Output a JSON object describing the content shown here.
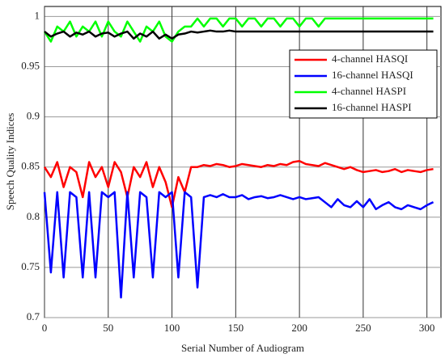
{
  "chart_data": {
    "type": "line",
    "xlabel": "Serial Number of Audiogram",
    "ylabel": "Speech Quality Indices",
    "x": [
      0,
      5,
      10,
      15,
      20,
      25,
      30,
      35,
      40,
      45,
      50,
      55,
      60,
      65,
      70,
      75,
      80,
      85,
      90,
      95,
      100,
      105,
      110,
      115,
      120,
      125,
      130,
      135,
      140,
      145,
      150,
      155,
      160,
      165,
      170,
      175,
      180,
      185,
      190,
      195,
      200,
      205,
      210,
      215,
      220,
      225,
      230,
      235,
      240,
      245,
      250,
      255,
      260,
      265,
      270,
      275,
      280,
      285,
      290,
      295,
      300,
      305
    ],
    "series": [
      {
        "name": "4-channel HASQI",
        "color": "#ff0000",
        "values": [
          0.85,
          0.84,
          0.855,
          0.83,
          0.85,
          0.845,
          0.82,
          0.855,
          0.84,
          0.85,
          0.83,
          0.855,
          0.845,
          0.82,
          0.85,
          0.84,
          0.855,
          0.83,
          0.85,
          0.835,
          0.81,
          0.84,
          0.825,
          0.85,
          0.85,
          0.852,
          0.851,
          0.853,
          0.852,
          0.85,
          0.851,
          0.853,
          0.852,
          0.851,
          0.85,
          0.852,
          0.851,
          0.853,
          0.852,
          0.855,
          0.856,
          0.853,
          0.852,
          0.851,
          0.854,
          0.852,
          0.85,
          0.848,
          0.85,
          0.847,
          0.845,
          0.846,
          0.847,
          0.845,
          0.846,
          0.848,
          0.845,
          0.847,
          0.846,
          0.845,
          0.847,
          0.848
        ]
      },
      {
        "name": "16-channel HASQI",
        "color": "#0000ff",
        "values": [
          0.825,
          0.745,
          0.825,
          0.74,
          0.825,
          0.82,
          0.74,
          0.825,
          0.74,
          0.825,
          0.82,
          0.825,
          0.72,
          0.825,
          0.74,
          0.825,
          0.82,
          0.74,
          0.825,
          0.82,
          0.825,
          0.74,
          0.825,
          0.82,
          0.73,
          0.82,
          0.822,
          0.82,
          0.823,
          0.82,
          0.82,
          0.822,
          0.818,
          0.82,
          0.821,
          0.819,
          0.82,
          0.822,
          0.82,
          0.818,
          0.82,
          0.818,
          0.819,
          0.82,
          0.815,
          0.81,
          0.818,
          0.812,
          0.81,
          0.816,
          0.81,
          0.818,
          0.808,
          0.812,
          0.815,
          0.81,
          0.808,
          0.812,
          0.81,
          0.808,
          0.812,
          0.815
        ]
      },
      {
        "name": "4-channel HASPI",
        "color": "#00ff00",
        "values": [
          0.985,
          0.975,
          0.99,
          0.985,
          0.995,
          0.98,
          0.99,
          0.985,
          0.995,
          0.98,
          0.995,
          0.985,
          0.98,
          0.995,
          0.985,
          0.975,
          0.99,
          0.985,
          0.995,
          0.98,
          0.975,
          0.985,
          0.99,
          0.99,
          0.998,
          0.99,
          0.998,
          0.998,
          0.99,
          0.998,
          0.998,
          0.99,
          0.998,
          0.998,
          0.99,
          0.998,
          0.998,
          0.99,
          0.998,
          0.998,
          0.99,
          0.998,
          0.998,
          0.99,
          0.998,
          0.998,
          0.998,
          0.998,
          0.998,
          0.998,
          0.998,
          0.998,
          0.998,
          0.998,
          0.998,
          0.998,
          0.998,
          0.998,
          0.998,
          0.998,
          0.998,
          0.998
        ]
      },
      {
        "name": "16-channel HASPI",
        "color": "#000000",
        "values": [
          0.985,
          0.98,
          0.983,
          0.985,
          0.98,
          0.984,
          0.982,
          0.985,
          0.98,
          0.983,
          0.984,
          0.98,
          0.983,
          0.985,
          0.978,
          0.983,
          0.98,
          0.985,
          0.978,
          0.982,
          0.978,
          0.982,
          0.983,
          0.985,
          0.984,
          0.985,
          0.986,
          0.985,
          0.985,
          0.986,
          0.985,
          0.985,
          0.985,
          0.985,
          0.985,
          0.985,
          0.985,
          0.985,
          0.985,
          0.985,
          0.985,
          0.985,
          0.985,
          0.985,
          0.985,
          0.985,
          0.985,
          0.985,
          0.985,
          0.985,
          0.985,
          0.985,
          0.985,
          0.985,
          0.985,
          0.985,
          0.985,
          0.985,
          0.985,
          0.985,
          0.985,
          0.985
        ]
      }
    ],
    "xlim": [
      0,
      311
    ],
    "xticks": [
      0,
      50,
      100,
      150,
      200,
      250,
      300
    ],
    "ylim": [
      0.7,
      1.01
    ],
    "yticks": [
      0.7,
      0.75,
      0.8,
      0.85,
      0.9,
      0.95,
      1
    ],
    "grid": true,
    "legend": "upper right"
  }
}
